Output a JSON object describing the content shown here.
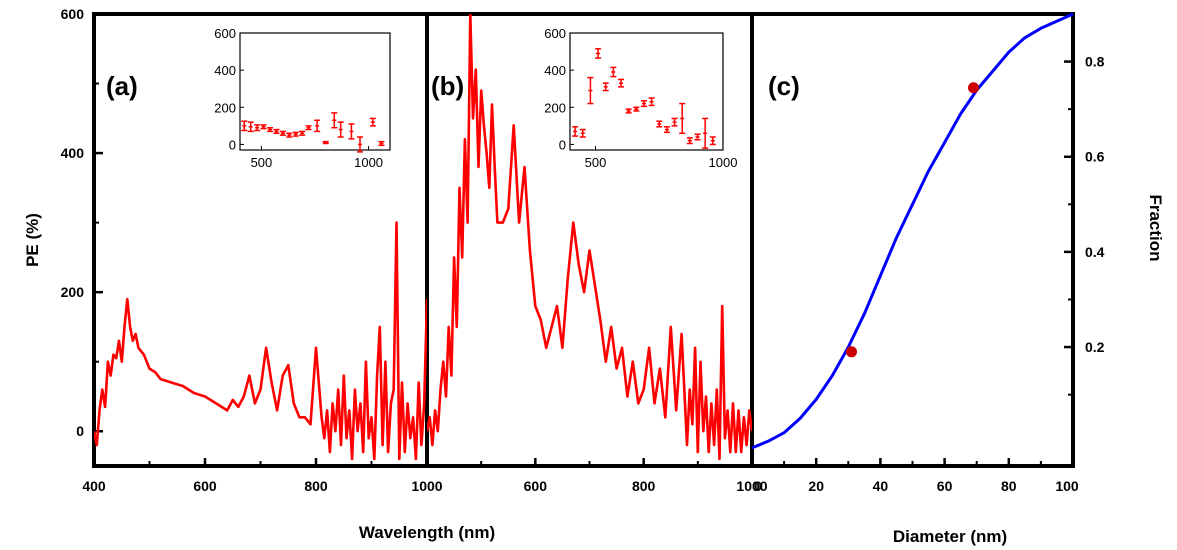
{
  "chart_data": [
    {
      "panel": "(a)",
      "type": "line",
      "color": "#ff0000",
      "xlabel": "Wavelength (nm)",
      "ylabel": "PE (%)",
      "xlim": [
        400,
        1000
      ],
      "ylim": [
        -50,
        600
      ],
      "xticks": [
        "400",
        "600",
        "800",
        "1000"
      ],
      "yticks": [
        "0",
        "200",
        "400",
        "600"
      ],
      "x": [
        400,
        405,
        410,
        415,
        420,
        425,
        430,
        435,
        440,
        445,
        450,
        455,
        460,
        465,
        470,
        475,
        480,
        490,
        500,
        510,
        520,
        540,
        560,
        580,
        600,
        620,
        640,
        650,
        660,
        670,
        680,
        690,
        700,
        710,
        720,
        730,
        740,
        750,
        760,
        770,
        780,
        790,
        800,
        810,
        815,
        820,
        825,
        830,
        835,
        840,
        845,
        850,
        855,
        860,
        865,
        870,
        875,
        880,
        885,
        890,
        895,
        900,
        905,
        910,
        915,
        920,
        925,
        930,
        935,
        940,
        945,
        950,
        955,
        960,
        965,
        970,
        975,
        980,
        985,
        990,
        995,
        1000
      ],
      "y": [
        0,
        -20,
        30,
        60,
        35,
        100,
        80,
        110,
        105,
        130,
        100,
        150,
        190,
        150,
        130,
        140,
        120,
        110,
        90,
        85,
        75,
        70,
        65,
        55,
        50,
        40,
        30,
        45,
        35,
        50,
        80,
        40,
        60,
        120,
        70,
        30,
        80,
        95,
        40,
        20,
        20,
        10,
        120,
        20,
        -10,
        30,
        -30,
        40,
        0,
        60,
        -20,
        80,
        -10,
        30,
        -40,
        60,
        0,
        40,
        -30,
        100,
        -10,
        20,
        -40,
        80,
        150,
        -20,
        100,
        -30,
        40,
        60,
        300,
        -40,
        70,
        -30,
        40,
        -10,
        20,
        -40,
        70,
        -20,
        40,
        190
      ],
      "inset": {
        "type": "scatter",
        "error_bars": true,
        "xlim": [
          400,
          1100
        ],
        "ylim": [
          -30,
          600
        ],
        "xticks": [
          "500",
          "1000"
        ],
        "yticks": [
          "0",
          "200",
          "400",
          "600"
        ],
        "x": [
          420,
          450,
          480,
          510,
          540,
          570,
          600,
          630,
          660,
          690,
          720,
          760,
          800,
          840,
          870,
          920,
          960,
          1020,
          1060
        ],
        "y": [
          100,
          95,
          90,
          95,
          80,
          70,
          60,
          50,
          55,
          60,
          90,
          100,
          10,
          130,
          80,
          70,
          0,
          120,
          5
        ],
        "err": [
          25,
          25,
          15,
          10,
          10,
          10,
          10,
          10,
          10,
          10,
          10,
          30,
          5,
          40,
          40,
          40,
          40,
          20,
          10
        ]
      }
    },
    {
      "panel": "(b)",
      "type": "line",
      "color": "#ff0000",
      "xlabel": "Wavelength (nm)",
      "xlim": [
        400,
        1000
      ],
      "ylim": [
        -50,
        600
      ],
      "xticks": [
        "600",
        "800",
        "1000"
      ],
      "x": [
        400,
        405,
        410,
        415,
        420,
        425,
        430,
        435,
        440,
        445,
        450,
        455,
        460,
        465,
        470,
        475,
        480,
        485,
        490,
        495,
        500,
        505,
        510,
        515,
        520,
        525,
        530,
        540,
        550,
        560,
        570,
        580,
        590,
        600,
        610,
        620,
        630,
        640,
        650,
        660,
        670,
        680,
        690,
        700,
        710,
        720,
        730,
        740,
        750,
        760,
        770,
        780,
        790,
        800,
        810,
        820,
        830,
        840,
        850,
        860,
        870,
        880,
        885,
        890,
        895,
        900,
        905,
        910,
        915,
        920,
        925,
        930,
        935,
        940,
        945,
        950,
        955,
        960,
        965,
        970,
        975,
        980,
        985,
        990,
        995,
        1000
      ],
      "y": [
        0,
        20,
        -20,
        30,
        0,
        60,
        100,
        50,
        150,
        80,
        250,
        150,
        350,
        250,
        420,
        300,
        600,
        450,
        520,
        380,
        490,
        440,
        400,
        350,
        470,
        380,
        300,
        300,
        320,
        440,
        300,
        380,
        260,
        180,
        160,
        120,
        150,
        180,
        120,
        220,
        300,
        240,
        200,
        260,
        210,
        160,
        100,
        150,
        90,
        120,
        50,
        100,
        40,
        60,
        120,
        40,
        90,
        20,
        150,
        30,
        140,
        -20,
        60,
        10,
        120,
        -30,
        100,
        0,
        50,
        -30,
        40,
        -20,
        60,
        -40,
        180,
        -10,
        30,
        -30,
        40,
        -30,
        30,
        -30,
        20,
        -20,
        30,
        0
      ],
      "inset": {
        "type": "scatter",
        "error_bars": true,
        "xlim": [
          400,
          1000
        ],
        "ylim": [
          -30,
          600
        ],
        "xticks": [
          "500",
          "1000"
        ],
        "yticks": [
          "0",
          "200",
          "400",
          "600"
        ],
        "x": [
          420,
          450,
          480,
          510,
          540,
          570,
          600,
          630,
          660,
          690,
          720,
          750,
          780,
          810,
          840,
          870,
          900,
          930,
          960
        ],
        "y": [
          70,
          60,
          290,
          490,
          310,
          390,
          330,
          180,
          190,
          220,
          230,
          110,
          80,
          120,
          140,
          20,
          40,
          60,
          20
        ],
        "err": [
          25,
          20,
          70,
          25,
          20,
          25,
          20,
          10,
          10,
          15,
          20,
          15,
          15,
          20,
          80,
          15,
          15,
          80,
          20
        ]
      }
    },
    {
      "panel": "(c)",
      "type": "line",
      "xlabel": "Diameter (nm)",
      "ylabel": "Fraction",
      "xlim": [
        0,
        100
      ],
      "ylim": [
        -0.05,
        0.9
      ],
      "xticks": [
        "20",
        "40",
        "60",
        "80",
        "100"
      ],
      "yticks": [
        "0.2",
        "0.4",
        "0.6",
        "0.8"
      ],
      "series": [
        {
          "color": "#0000ff",
          "x": [
            0,
            5,
            10,
            15,
            20,
            25,
            30,
            35,
            40,
            45,
            50,
            55,
            60,
            65,
            70,
            75,
            80,
            85,
            90,
            95,
            100
          ],
          "y": [
            -0.012,
            0.002,
            0.02,
            0.05,
            0.09,
            0.14,
            0.2,
            0.27,
            0.35,
            0.43,
            0.5,
            0.57,
            0.63,
            0.69,
            0.74,
            0.78,
            0.82,
            0.85,
            0.87,
            0.885,
            0.9
          ]
        },
        {
          "type": "scatter",
          "color": "#cc0000",
          "x": [
            31,
            69
          ],
          "y": [
            0.19,
            0.745
          ]
        }
      ]
    }
  ]
}
